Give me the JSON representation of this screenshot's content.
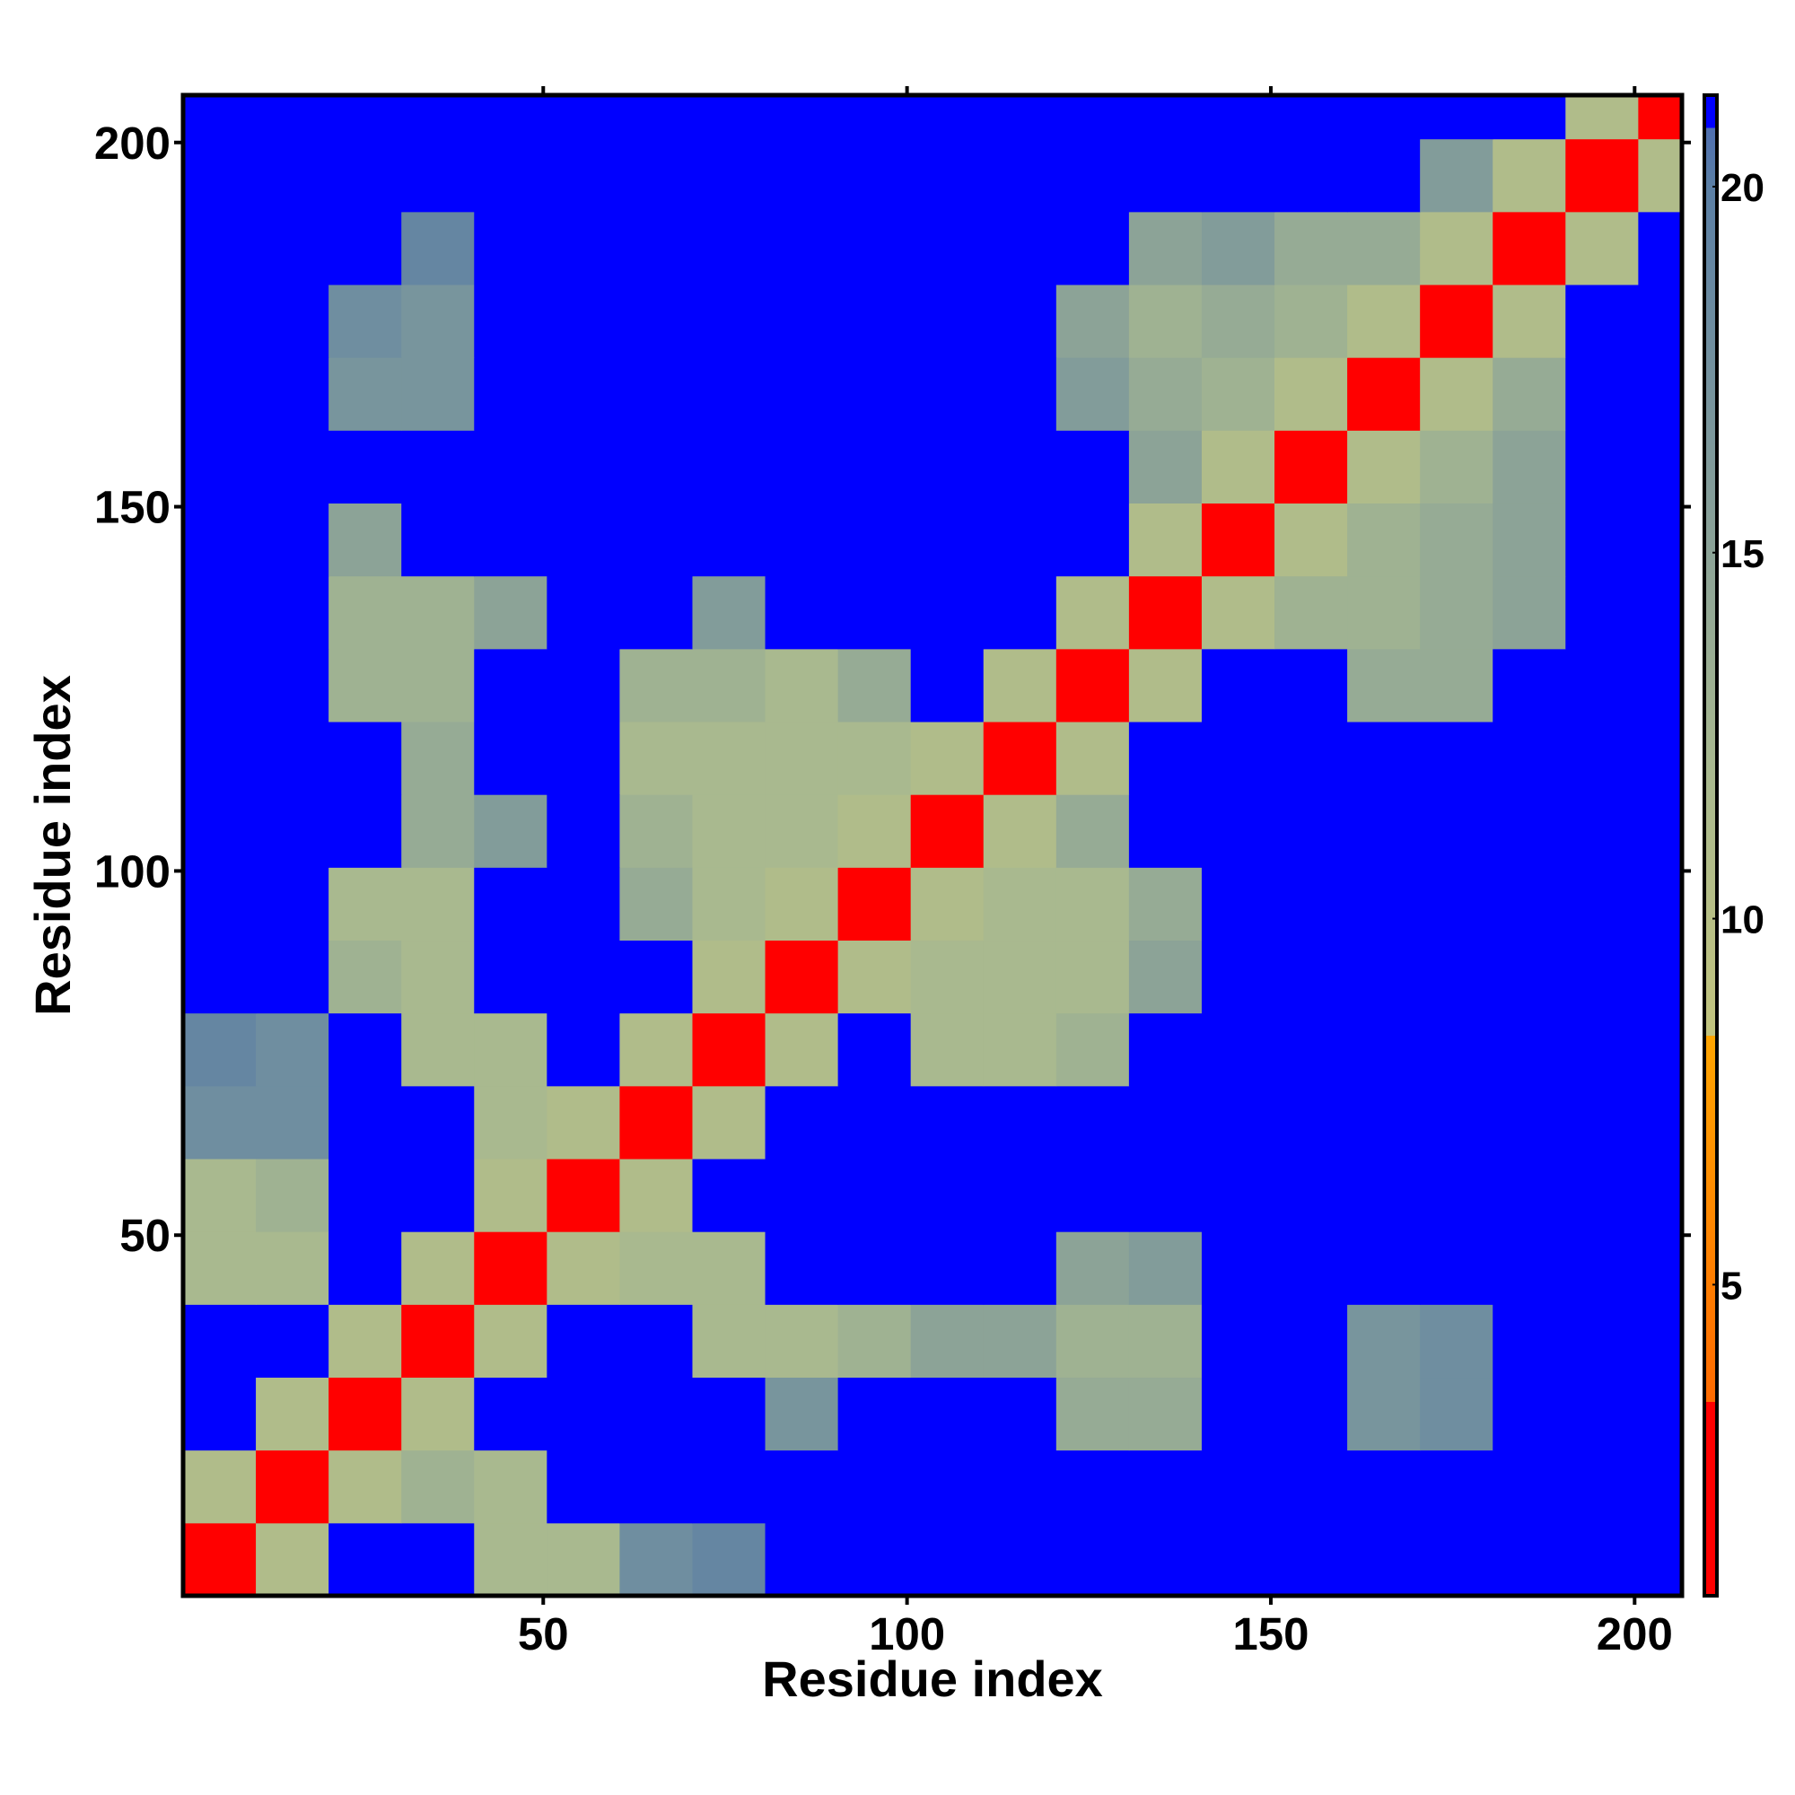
{
  "chart_data": {
    "type": "heatmap",
    "xlabel": "Residue index",
    "ylabel": "Residue index",
    "x": [
      5.5,
      15.5,
      25.5,
      35.5,
      45.5,
      55.5,
      65.5,
      75.5,
      85.5,
      95.5,
      105.5,
      115.5,
      125.5,
      135.5,
      145.5,
      155.5,
      165.5,
      175.5,
      185.5,
      195.5,
      205.5
    ],
    "y": [
      5.5,
      15.5,
      25.5,
      35.5,
      45.5,
      55.5,
      65.5,
      75.5,
      85.5,
      95.5,
      105.5,
      115.5,
      125.5,
      135.5,
      145.5,
      155.5,
      165.5,
      175.5,
      185.5,
      195.5,
      205.5
    ],
    "z": [
      [
        3,
        11,
        21,
        21,
        12,
        12,
        18,
        19,
        21,
        21,
        21,
        21,
        21,
        21,
        21,
        21,
        21,
        21,
        21,
        21,
        21
      ],
      [
        11,
        3,
        11,
        13,
        12,
        21,
        21,
        21,
        21,
        21,
        21,
        21,
        21,
        21,
        21,
        21,
        21,
        21,
        21,
        21,
        21
      ],
      [
        21,
        11,
        3,
        11,
        21,
        21,
        21,
        21,
        17,
        21,
        21,
        21,
        14,
        14,
        21,
        21,
        17,
        18,
        21,
        21,
        21
      ],
      [
        21,
        21,
        11,
        3,
        11,
        21,
        21,
        12,
        12,
        13,
        15,
        15,
        13,
        13,
        21,
        21,
        17,
        18,
        21,
        21,
        21
      ],
      [
        12,
        12,
        21,
        11,
        3,
        11,
        12,
        12,
        21,
        21,
        21,
        21,
        15,
        16,
        21,
        21,
        21,
        21,
        21,
        21,
        21
      ],
      [
        12,
        13,
        21,
        21,
        11,
        3,
        11,
        21,
        21,
        21,
        21,
        21,
        21,
        21,
        21,
        21,
        21,
        21,
        21,
        21,
        21
      ],
      [
        18,
        18,
        21,
        21,
        12,
        11,
        3,
        11,
        21,
        21,
        21,
        21,
        21,
        21,
        21,
        21,
        21,
        21,
        21,
        21,
        21
      ],
      [
        19,
        18,
        21,
        12,
        12,
        21,
        11,
        3,
        11,
        21,
        12,
        12,
        13,
        21,
        21,
        21,
        21,
        21,
        21,
        21,
        21
      ],
      [
        21,
        21,
        13,
        12,
        21,
        21,
        21,
        11,
        3,
        11,
        12,
        12,
        12,
        15,
        21,
        21,
        21,
        21,
        21,
        21,
        21
      ],
      [
        21,
        21,
        12,
        12,
        21,
        21,
        14,
        12,
        11,
        3,
        11,
        12,
        12,
        14,
        21,
        21,
        21,
        21,
        21,
        21,
        21
      ],
      [
        21,
        21,
        21,
        14,
        16,
        21,
        13,
        12,
        12,
        11,
        3,
        11,
        14,
        21,
        21,
        21,
        21,
        21,
        21,
        21,
        21
      ],
      [
        21,
        21,
        21,
        14,
        21,
        21,
        12,
        12,
        12,
        12,
        11,
        3,
        11,
        21,
        21,
        21,
        21,
        21,
        21,
        21,
        21
      ],
      [
        21,
        21,
        13,
        13,
        21,
        21,
        13,
        13,
        12,
        14,
        21,
        11,
        3,
        11,
        21,
        21,
        14,
        14,
        21,
        21,
        21
      ],
      [
        21,
        21,
        13,
        13,
        15,
        21,
        21,
        16,
        21,
        21,
        21,
        21,
        11,
        3,
        11,
        13,
        13,
        14,
        15,
        21,
        21
      ],
      [
        21,
        21,
        15,
        21,
        21,
        21,
        21,
        21,
        21,
        21,
        21,
        21,
        21,
        11,
        3,
        11,
        13,
        14,
        15,
        21,
        21
      ],
      [
        21,
        21,
        21,
        21,
        21,
        21,
        21,
        21,
        21,
        21,
        21,
        21,
        21,
        15,
        11,
        3,
        11,
        13,
        15,
        21,
        21
      ],
      [
        21,
        21,
        17,
        17,
        21,
        21,
        21,
        21,
        21,
        21,
        21,
        21,
        16,
        14,
        13,
        11,
        3,
        11,
        14,
        21,
        21
      ],
      [
        21,
        21,
        18,
        17,
        21,
        21,
        21,
        21,
        21,
        21,
        21,
        21,
        15,
        13,
        14,
        13,
        11,
        3,
        11,
        21,
        21
      ],
      [
        21,
        21,
        21,
        19,
        21,
        21,
        21,
        21,
        21,
        21,
        21,
        21,
        21,
        15,
        16,
        14,
        14,
        11,
        3,
        11,
        21
      ],
      [
        21,
        21,
        21,
        21,
        21,
        21,
        21,
        21,
        21,
        21,
        21,
        21,
        21,
        21,
        21,
        21,
        21,
        16,
        11,
        3,
        11
      ],
      [
        21,
        21,
        21,
        21,
        21,
        21,
        21,
        21,
        21,
        21,
        21,
        21,
        21,
        21,
        21,
        21,
        21,
        21,
        21,
        11,
        3
      ]
    ],
    "cell_size": 10,
    "xlim": [
      0.5,
      206.5
    ],
    "ylim": [
      0.5,
      206.5
    ],
    "xticks": [
      50,
      100,
      150,
      200
    ],
    "yticks": [
      50,
      100,
      150,
      200
    ],
    "zlim": [
      0.75,
      21.25
    ],
    "colorbar_ticks": [
      5,
      10,
      15,
      20
    ],
    "colorscale": [
      [
        0.75,
        "#ff0000"
      ],
      [
        3.4,
        "#ff0000"
      ],
      [
        3.4,
        "#ff6a00"
      ],
      [
        8.4,
        "#ffa500"
      ],
      [
        8.4,
        "#c2c47e"
      ],
      [
        12,
        "#a9b98f"
      ],
      [
        20,
        "#5b7fa5"
      ],
      [
        20.8,
        "#4f6fb0"
      ],
      [
        20.8,
        "#0000ff"
      ],
      [
        21.25,
        "#0000ff"
      ]
    ]
  }
}
